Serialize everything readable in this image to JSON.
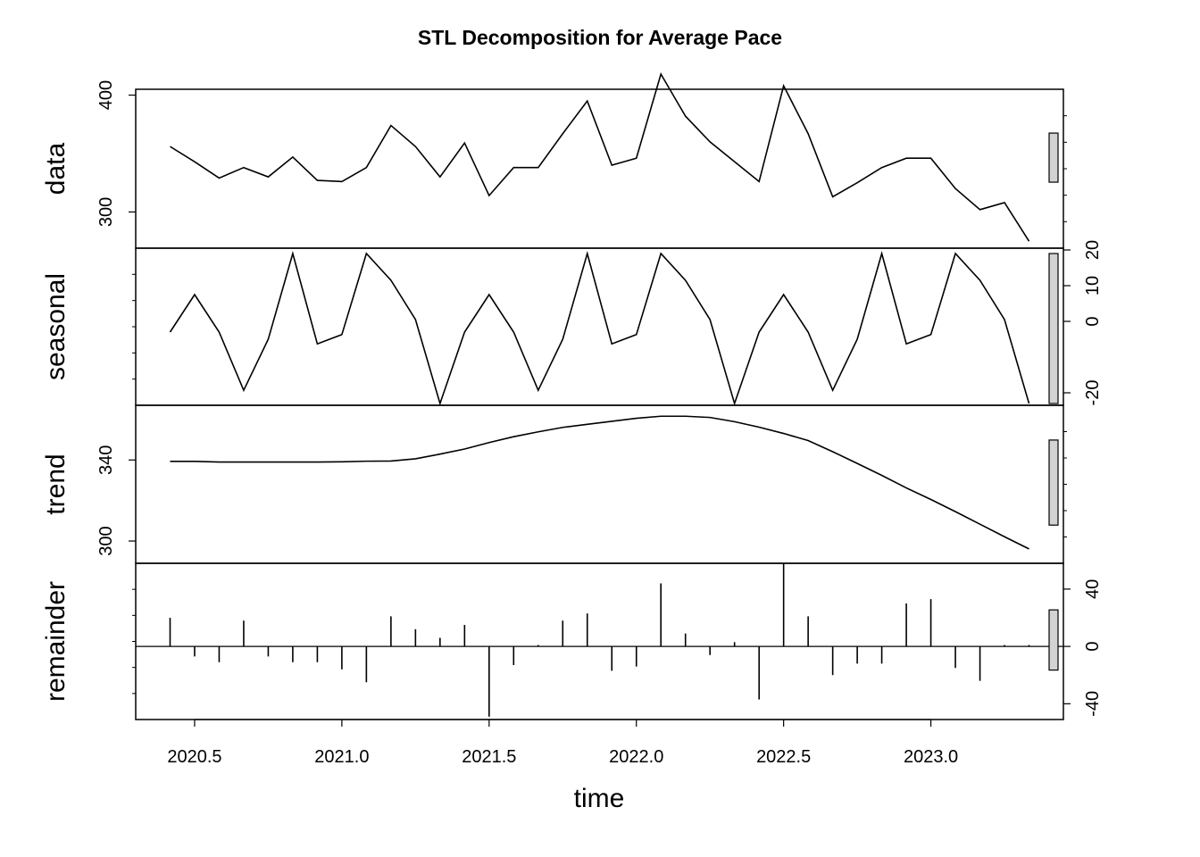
{
  "chart_data": {
    "type": "line",
    "title": "STL Decomposition for Average Pace",
    "xlabel": "time",
    "x_ticks": [
      2020.5,
      2021.0,
      2021.5,
      2022.0,
      2022.5,
      2023.0
    ],
    "x_tick_labels": [
      "2020.5",
      "2021.0",
      "2021.5",
      "2022.0",
      "2022.5",
      "2023.0"
    ],
    "xlim": [
      2020.3,
      2023.45
    ],
    "x": [
      2020.4167,
      2020.5,
      2020.5833,
      2020.6667,
      2020.75,
      2020.8333,
      2020.9167,
      2021.0,
      2021.0833,
      2021.1667,
      2021.25,
      2021.3333,
      2021.4167,
      2021.5,
      2021.5833,
      2021.6667,
      2021.75,
      2021.8333,
      2021.9167,
      2022.0,
      2022.0833,
      2022.1667,
      2022.25,
      2022.3333,
      2022.4167,
      2022.5,
      2022.5833,
      2022.6667,
      2022.75,
      2022.8333,
      2022.9167,
      2023.0,
      2023.0833,
      2023.1667,
      2023.25,
      2023.3333
    ],
    "panels": [
      {
        "name": "data",
        "ylabel": "data",
        "style": "line",
        "ylim": [
          269,
          405
        ],
        "ticks": [
          300,
          400
        ],
        "tick_labels": [
          "300",
          "400"
        ],
        "tick_side": "left",
        "values": [
          356,
          343,
          329,
          338,
          330,
          347,
          327,
          326,
          338,
          374,
          356,
          330,
          359,
          314,
          338,
          338,
          367,
          395,
          340,
          346,
          418,
          382,
          360,
          343,
          326,
          408,
          367,
          313,
          325,
          338,
          346,
          346,
          320,
          302,
          308,
          275
        ]
      },
      {
        "name": "seasonal",
        "ylabel": "seasonal",
        "style": "line",
        "ylim": [
          -23.5,
          20.5
        ],
        "ticks": [
          -20,
          0,
          10,
          20
        ],
        "tick_labels": [
          "-20",
          "0",
          "10",
          "20"
        ],
        "tick_side": "right",
        "values": [
          -3,
          7.5,
          -3,
          -19.3,
          -5,
          19,
          -6.3,
          -3.7,
          19,
          11.5,
          0.5,
          -23,
          -3,
          7.5,
          -3,
          -19.3,
          -5,
          19,
          -6.3,
          -3.7,
          19,
          11.5,
          0.5,
          -23,
          -3,
          7.5,
          -3,
          -19.3,
          -5,
          19,
          -6.3,
          -3.7,
          19,
          11.5,
          0.5,
          -23
        ]
      },
      {
        "name": "trend",
        "ylabel": "trend",
        "style": "line",
        "ylim": [
          289,
          367
        ],
        "ticks": [
          300,
          340
        ],
        "tick_labels": [
          "300",
          "340"
        ],
        "tick_side": "left",
        "values": [
          339.3,
          339.3,
          339,
          339,
          339,
          339,
          339,
          339.1,
          339.4,
          339.5,
          340.6,
          342.9,
          345.4,
          348.6,
          351.5,
          353.9,
          356.1,
          357.6,
          359.1,
          360.6,
          361.6,
          361.6,
          361,
          358.9,
          356.2,
          353.1,
          349.6,
          344.1,
          338.3,
          332.4,
          326.2,
          320.5,
          314.5,
          308.3,
          302.1,
          296.1
        ]
      },
      {
        "name": "remainder",
        "ylabel": "remainder",
        "style": "bars",
        "ylim": [
          -51,
          58
        ],
        "ticks": [
          -40,
          0,
          40
        ],
        "tick_labels": [
          "-40",
          "0",
          "40"
        ],
        "tick_side": "right",
        "values": [
          20,
          -7,
          -11,
          18,
          -7,
          -11,
          -11,
          -16,
          -25,
          21,
          12,
          6,
          15,
          -49,
          -13,
          1,
          18,
          23,
          -17,
          -14,
          44,
          9,
          -6,
          3,
          -37,
          58,
          21,
          -20,
          -12,
          -12,
          30,
          33,
          -15,
          -24,
          1,
          1
        ]
      }
    ],
    "range_bars": true,
    "grid": false
  }
}
